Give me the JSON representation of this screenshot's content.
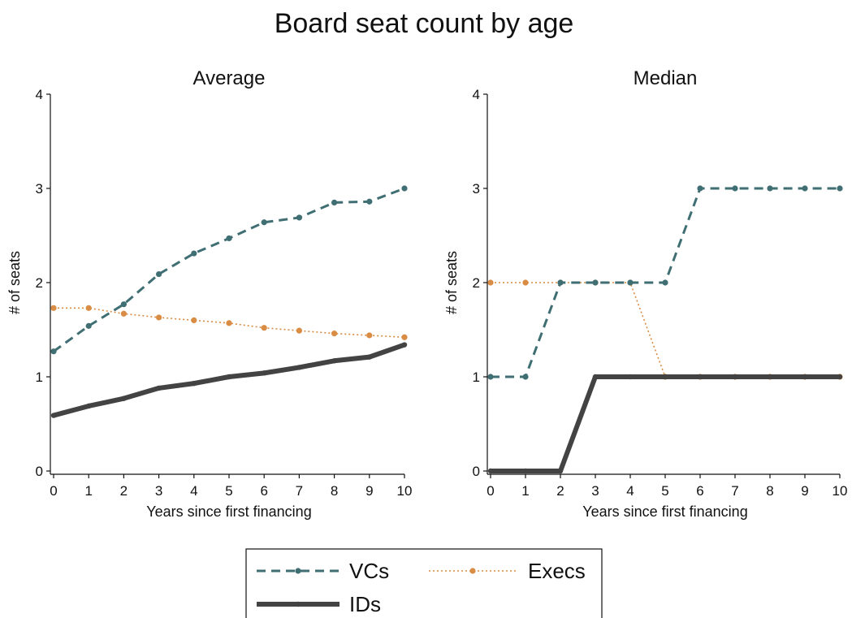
{
  "figure": {
    "title": "Board seat count by age",
    "legend": {
      "placement": "bottom-center",
      "entries": [
        {
          "label": "VCs",
          "series": "VCs"
        },
        {
          "label": "Execs",
          "series": "Execs"
        },
        {
          "label": "IDs",
          "series": "IDs"
        }
      ]
    }
  },
  "styles": {
    "VCs": {
      "color": "#3f6e73",
      "dash": "dashed"
    },
    "Execs": {
      "color": "#d98c44",
      "dash": "dotted"
    },
    "IDs": {
      "color": "#434343",
      "dash": "solid"
    }
  },
  "chart_data": [
    {
      "type": "line",
      "title": "Average",
      "xlabel": "Years since first financing",
      "ylabel": "# of seats",
      "xlim": [
        0,
        10
      ],
      "ylim": [
        0,
        4
      ],
      "x": [
        0,
        1,
        2,
        3,
        4,
        5,
        6,
        7,
        8,
        9,
        10
      ],
      "xticks": [
        "0",
        "1",
        "2",
        "3",
        "4",
        "5",
        "6",
        "7",
        "8",
        "9",
        "10"
      ],
      "yticks": [
        "0",
        "1",
        "2",
        "3",
        "4"
      ],
      "grid": false,
      "series": [
        {
          "name": "VCs",
          "values": [
            1.27,
            1.54,
            1.77,
            2.09,
            2.31,
            2.47,
            2.64,
            2.69,
            2.85,
            2.86,
            3.0
          ]
        },
        {
          "name": "Execs",
          "values": [
            1.73,
            1.73,
            1.67,
            1.63,
            1.6,
            1.57,
            1.52,
            1.49,
            1.46,
            1.44,
            1.42
          ]
        },
        {
          "name": "IDs",
          "values": [
            0.59,
            0.69,
            0.77,
            0.88,
            0.93,
            1.0,
            1.04,
            1.1,
            1.17,
            1.21,
            1.34
          ]
        }
      ]
    },
    {
      "type": "line",
      "title": "Median",
      "xlabel": "Years since first financing",
      "ylabel": "# of seats",
      "xlim": [
        0,
        10
      ],
      "ylim": [
        0,
        4
      ],
      "x": [
        0,
        1,
        2,
        3,
        4,
        5,
        6,
        7,
        8,
        9,
        10
      ],
      "xticks": [
        "0",
        "1",
        "2",
        "3",
        "4",
        "5",
        "6",
        "7",
        "8",
        "9",
        "10"
      ],
      "yticks": [
        "0",
        "1",
        "2",
        "3",
        "4"
      ],
      "grid": false,
      "series": [
        {
          "name": "VCs",
          "values": [
            1,
            1,
            2,
            2,
            2,
            2,
            3,
            3,
            3,
            3,
            3
          ]
        },
        {
          "name": "Execs",
          "values": [
            2,
            2,
            2,
            2,
            2,
            1,
            1,
            1,
            1,
            1,
            1
          ]
        },
        {
          "name": "IDs",
          "values": [
            0,
            0,
            0,
            1,
            1,
            1,
            1,
            1,
            1,
            1,
            1
          ]
        }
      ]
    }
  ]
}
